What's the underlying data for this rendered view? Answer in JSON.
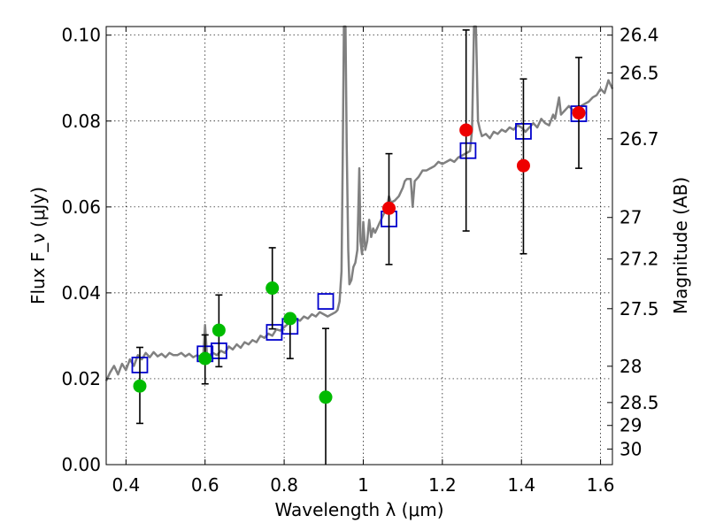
{
  "chart_data": {
    "type": "scatter",
    "xlabel": "Wavelength λ (μm)",
    "ylabel": "Flux F_ν (μJy)",
    "ylabel_right": "Magnitude (AB)",
    "xlim": [
      0.35,
      1.63
    ],
    "ylim": [
      0.0,
      0.102
    ],
    "grid": true,
    "x_ticks": [
      {
        "value": 0.4,
        "label": "0.4"
      },
      {
        "value": 0.6,
        "label": "0.6"
      },
      {
        "value": 0.8,
        "label": "0.8"
      },
      {
        "value": 1.0,
        "label": "1"
      },
      {
        "value": 1.2,
        "label": "1.2"
      },
      {
        "value": 1.4,
        "label": "1.4"
      },
      {
        "value": 1.6,
        "label": "1.6"
      }
    ],
    "y_ticks": [
      {
        "value": 0.0,
        "label": "0.00"
      },
      {
        "value": 0.02,
        "label": "0.02"
      },
      {
        "value": 0.04,
        "label": "0.04"
      },
      {
        "value": 0.06,
        "label": "0.06"
      },
      {
        "value": 0.08,
        "label": "0.08"
      },
      {
        "value": 0.1,
        "label": "0.10"
      }
    ],
    "mag_ticks": [
      {
        "mag": 26.4,
        "label": "26.4"
      },
      {
        "mag": 26.5,
        "label": "26.5"
      },
      {
        "mag": 26.7,
        "label": "26.7"
      },
      {
        "mag": 27.0,
        "label": "27"
      },
      {
        "mag": 27.2,
        "label": "27.2"
      },
      {
        "mag": 27.5,
        "label": "27.5"
      },
      {
        "mag": 28.0,
        "label": "28"
      },
      {
        "mag": 28.5,
        "label": "28.5"
      },
      {
        "mag": 29.0,
        "label": "29"
      },
      {
        "mag": 30.0,
        "label": "30"
      }
    ],
    "sed_model": {
      "color": "#808080",
      "points": [
        [
          0.35,
          0.0195
        ],
        [
          0.36,
          0.0215
        ],
        [
          0.37,
          0.023
        ],
        [
          0.38,
          0.021
        ],
        [
          0.39,
          0.0235
        ],
        [
          0.4,
          0.022
        ],
        [
          0.41,
          0.0245
        ],
        [
          0.42,
          0.023
        ],
        [
          0.43,
          0.0255
        ],
        [
          0.44,
          0.0245
        ],
        [
          0.45,
          0.026
        ],
        [
          0.46,
          0.025
        ],
        [
          0.47,
          0.0262
        ],
        [
          0.48,
          0.0252
        ],
        [
          0.49,
          0.0258
        ],
        [
          0.5,
          0.025
        ],
        [
          0.51,
          0.026
        ],
        [
          0.52,
          0.0255
        ],
        [
          0.53,
          0.0255
        ],
        [
          0.54,
          0.026
        ],
        [
          0.55,
          0.0252
        ],
        [
          0.56,
          0.0258
        ],
        [
          0.57,
          0.025
        ],
        [
          0.58,
          0.0255
        ],
        [
          0.59,
          0.025
        ],
        [
          0.595,
          0.0245
        ],
        [
          0.6,
          0.0325
        ],
        [
          0.605,
          0.025
        ],
        [
          0.61,
          0.0255
        ],
        [
          0.62,
          0.026
        ],
        [
          0.63,
          0.0255
        ],
        [
          0.64,
          0.0265
        ],
        [
          0.65,
          0.026
        ],
        [
          0.66,
          0.0275
        ],
        [
          0.67,
          0.0268
        ],
        [
          0.68,
          0.028
        ],
        [
          0.69,
          0.0272
        ],
        [
          0.7,
          0.0285
        ],
        [
          0.71,
          0.028
        ],
        [
          0.72,
          0.029
        ],
        [
          0.73,
          0.0285
        ],
        [
          0.74,
          0.03
        ],
        [
          0.75,
          0.0295
        ],
        [
          0.76,
          0.0305
        ],
        [
          0.77,
          0.03
        ],
        [
          0.78,
          0.0315
        ],
        [
          0.79,
          0.0312
        ],
        [
          0.8,
          0.032
        ],
        [
          0.81,
          0.0328
        ],
        [
          0.82,
          0.0335
        ],
        [
          0.83,
          0.034
        ],
        [
          0.84,
          0.0335
        ],
        [
          0.85,
          0.0345
        ],
        [
          0.86,
          0.034
        ],
        [
          0.87,
          0.035
        ],
        [
          0.88,
          0.0345
        ],
        [
          0.89,
          0.0355
        ],
        [
          0.9,
          0.035
        ],
        [
          0.91,
          0.0345
        ],
        [
          0.92,
          0.035
        ],
        [
          0.93,
          0.0355
        ],
        [
          0.935,
          0.036
        ],
        [
          0.94,
          0.038
        ],
        [
          0.945,
          0.045
        ],
        [
          0.948,
          0.07
        ],
        [
          0.951,
          0.102
        ],
        [
          0.955,
          0.102
        ],
        [
          0.958,
          0.075
        ],
        [
          0.962,
          0.05
        ],
        [
          0.965,
          0.042
        ],
        [
          0.97,
          0.043
        ],
        [
          0.975,
          0.046
        ],
        [
          0.98,
          0.047
        ],
        [
          0.985,
          0.05
        ],
        [
          0.99,
          0.069
        ],
        [
          0.993,
          0.052
        ],
        [
          0.997,
          0.049
        ],
        [
          1.0,
          0.0565
        ],
        [
          1.005,
          0.05
        ],
        [
          1.01,
          0.052
        ],
        [
          1.015,
          0.057
        ],
        [
          1.02,
          0.053
        ],
        [
          1.025,
          0.055
        ],
        [
          1.03,
          0.054
        ],
        [
          1.04,
          0.056
        ],
        [
          1.05,
          0.058
        ],
        [
          1.06,
          0.06
        ],
        [
          1.065,
          0.0625
        ],
        [
          1.07,
          0.061
        ],
        [
          1.08,
          0.0615
        ],
        [
          1.09,
          0.0625
        ],
        [
          1.1,
          0.0645
        ],
        [
          1.105,
          0.066
        ],
        [
          1.11,
          0.0665
        ],
        [
          1.12,
          0.0665
        ],
        [
          1.125,
          0.06
        ],
        [
          1.13,
          0.066
        ],
        [
          1.14,
          0.067
        ],
        [
          1.15,
          0.0685
        ],
        [
          1.16,
          0.0685
        ],
        [
          1.17,
          0.069
        ],
        [
          1.18,
          0.0695
        ],
        [
          1.19,
          0.0705
        ],
        [
          1.2,
          0.07
        ],
        [
          1.21,
          0.0705
        ],
        [
          1.22,
          0.071
        ],
        [
          1.23,
          0.0705
        ],
        [
          1.24,
          0.0715
        ],
        [
          1.25,
          0.072
        ],
        [
          1.26,
          0.0725
        ],
        [
          1.27,
          0.073
        ],
        [
          1.275,
          0.078
        ],
        [
          1.28,
          0.102
        ],
        [
          1.285,
          0.102
        ],
        [
          1.29,
          0.08
        ],
        [
          1.295,
          0.078
        ],
        [
          1.3,
          0.0765
        ],
        [
          1.31,
          0.077
        ],
        [
          1.32,
          0.076
        ],
        [
          1.33,
          0.0775
        ],
        [
          1.34,
          0.077
        ],
        [
          1.35,
          0.078
        ],
        [
          1.36,
          0.0775
        ],
        [
          1.37,
          0.0785
        ],
        [
          1.38,
          0.078
        ],
        [
          1.39,
          0.079
        ],
        [
          1.4,
          0.0785
        ],
        [
          1.41,
          0.0775
        ],
        [
          1.42,
          0.0785
        ],
        [
          1.43,
          0.0795
        ],
        [
          1.44,
          0.0785
        ],
        [
          1.45,
          0.0805
        ],
        [
          1.46,
          0.0795
        ],
        [
          1.47,
          0.079
        ],
        [
          1.48,
          0.0815
        ],
        [
          1.485,
          0.0805
        ],
        [
          1.49,
          0.083
        ],
        [
          1.495,
          0.0855
        ],
        [
          1.5,
          0.0815
        ],
        [
          1.51,
          0.0825
        ],
        [
          1.52,
          0.0835
        ],
        [
          1.53,
          0.0825
        ],
        [
          1.54,
          0.083
        ],
        [
          1.55,
          0.0835
        ],
        [
          1.56,
          0.084
        ],
        [
          1.57,
          0.0845
        ],
        [
          1.58,
          0.0855
        ],
        [
          1.59,
          0.086
        ],
        [
          1.6,
          0.0875
        ],
        [
          1.61,
          0.0865
        ],
        [
          1.62,
          0.0895
        ],
        [
          1.63,
          0.0875
        ]
      ]
    },
    "model_boxes": {
      "color": "#0000cc",
      "points": [
        [
          0.435,
          0.0232
        ],
        [
          0.6,
          0.0258
        ],
        [
          0.635,
          0.0265
        ],
        [
          0.775,
          0.0308
        ],
        [
          0.815,
          0.0322
        ],
        [
          0.905,
          0.038
        ],
        [
          1.065,
          0.0572
        ],
        [
          1.265,
          0.0731
        ],
        [
          1.405,
          0.0776
        ],
        [
          1.545,
          0.0817
        ]
      ]
    },
    "green_points": {
      "color": "#00bb00",
      "points": [
        {
          "x": 0.435,
          "y": 0.0183,
          "err": [
            0.0096,
            0.0273
          ]
        },
        {
          "x": 0.6,
          "y": 0.0247,
          "err": [
            0.0188,
            0.0302
          ]
        },
        {
          "x": 0.635,
          "y": 0.0313,
          "err": [
            0.0228,
            0.0395
          ]
        },
        {
          "x": 0.77,
          "y": 0.0411,
          "err": [
            0.0316,
            0.0505
          ]
        },
        {
          "x": 0.815,
          "y": 0.034,
          "err": [
            0.0247,
            0.0341
          ]
        },
        {
          "x": 0.905,
          "y": 0.0157,
          "err": [
            0.0,
            0.0317
          ]
        }
      ]
    },
    "red_points": {
      "color": "#ee0000",
      "points": [
        {
          "x": 1.065,
          "y": 0.0597,
          "err": [
            0.0466,
            0.0724
          ]
        },
        {
          "x": 1.26,
          "y": 0.0779,
          "err": [
            0.0544,
            0.1012
          ]
        },
        {
          "x": 1.405,
          "y": 0.0696,
          "err": [
            0.0491,
            0.0898
          ]
        },
        {
          "x": 1.545,
          "y": 0.0819,
          "err": [
            0.069,
            0.0948
          ]
        }
      ]
    }
  }
}
